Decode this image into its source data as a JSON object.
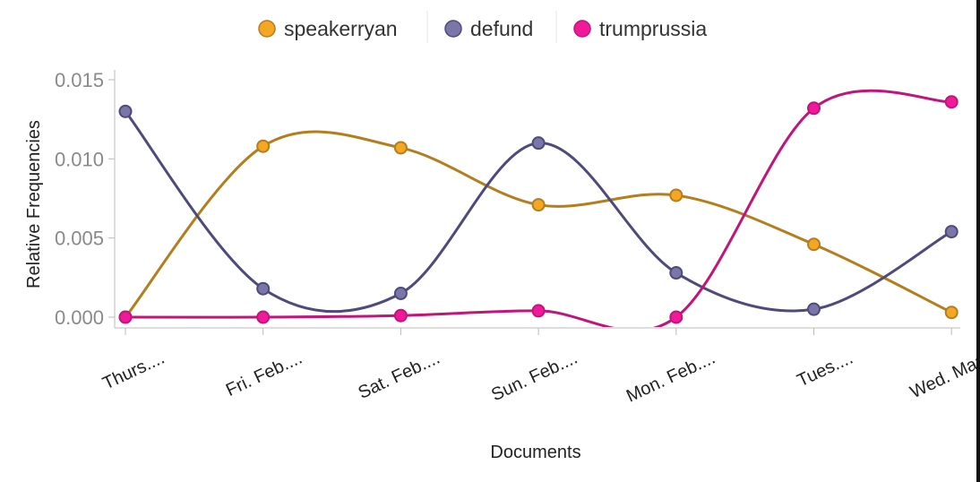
{
  "chart_data": {
    "type": "line",
    "title": "",
    "xlabel": "Documents",
    "ylabel": "Relative Frequencies",
    "categories": [
      "Thurs....",
      "Fri. Feb....",
      "Sat. Feb....",
      "Sun. Feb....",
      "Mon. Feb....",
      "Tues....",
      "Wed. Marc"
    ],
    "ylim": [
      0,
      0.015
    ],
    "yticks": [
      "0.000",
      "0.005",
      "0.010",
      "0.015"
    ],
    "ytick_values": [
      0,
      0.005,
      0.01,
      0.015
    ],
    "legend_position": "top-center",
    "series": [
      {
        "name": "speakerryan",
        "line_color": "#b47d1e",
        "dot_color": "#f5a623",
        "values": [
          0.0,
          0.0108,
          0.0107,
          0.0071,
          0.0077,
          0.0046,
          0.0003
        ]
      },
      {
        "name": "defund",
        "line_color": "#4e4a7c",
        "dot_color": "#7b76a8",
        "values": [
          0.013,
          0.0018,
          0.0015,
          0.011,
          0.0028,
          0.0005,
          0.0054
        ]
      },
      {
        "name": "trumprussia",
        "line_color": "#c0157a",
        "dot_color": "#f0199a",
        "values": [
          0.0,
          0.0,
          0.0001,
          0.0004,
          0.0,
          0.0132,
          0.0136
        ]
      }
    ]
  }
}
